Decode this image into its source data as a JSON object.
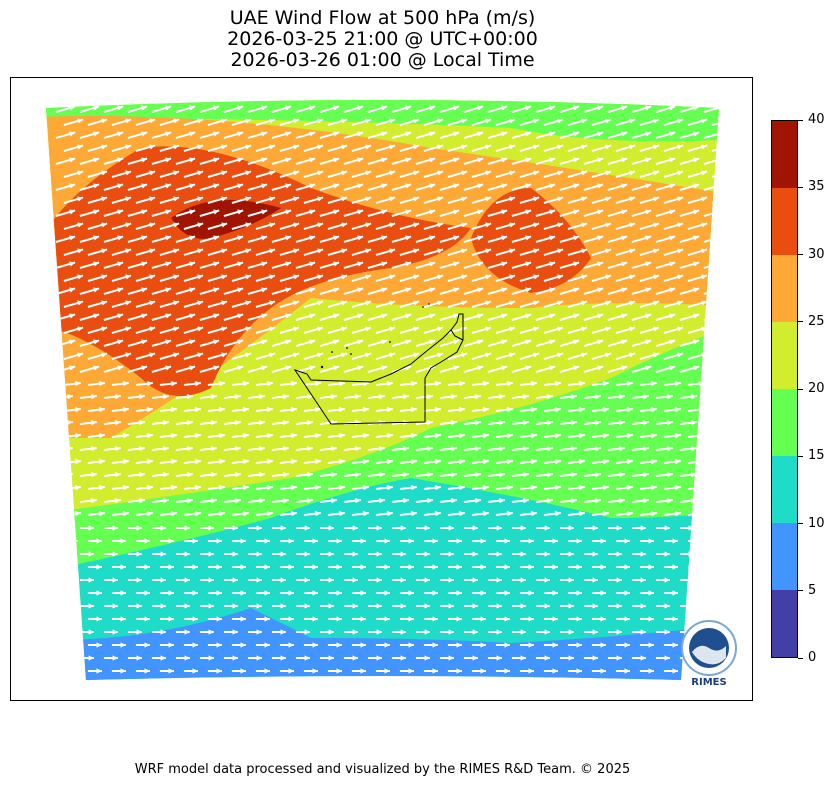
{
  "title": {
    "line1": "UAE Wind Flow at 500 hPa (m/s)",
    "line2": "2026-03-25 21:00 @ UTC+00:00",
    "line3": "2026-03-26 01:00 @ Local Time"
  },
  "colorbar": {
    "ticks": [
      "0",
      "5",
      "10",
      "15",
      "20",
      "25",
      "30",
      "35",
      "40"
    ],
    "colors": [
      "#423fa6",
      "#4294ff",
      "#1edcc8",
      "#64ff50",
      "#d2ec2e",
      "#fea936",
      "#e94d0f",
      "#a21402"
    ]
  },
  "map": {
    "background_regions": [
      {
        "level": "25-30",
        "color": "#fea936"
      },
      {
        "level": "30-35",
        "color": "#e94d0f"
      },
      {
        "level": "35-40",
        "color": "#a21402"
      },
      {
        "level": "20-25",
        "color": "#d2ec2e"
      },
      {
        "level": "15-20",
        "color": "#64ff50"
      },
      {
        "level": "10-15",
        "color": "#1edcc8"
      },
      {
        "level": "5-10",
        "color": "#4294ff"
      }
    ],
    "arrow_color": "#ffffff",
    "border_color": "#000000"
  },
  "logo": {
    "text": "RIMES"
  },
  "footer": {
    "text": "WRF model data processed and visualized by the RIMES R&D Team. © 2025"
  }
}
